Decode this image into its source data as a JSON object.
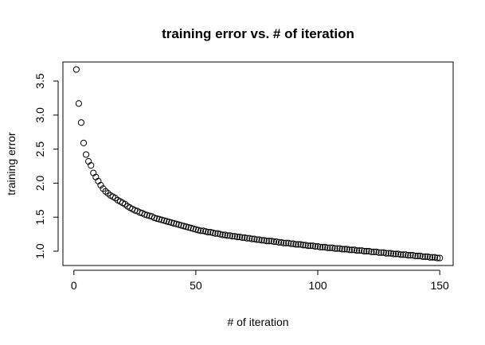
{
  "chart_data": {
    "type": "scatter",
    "title": "training error vs. # of iteration",
    "xlabel": "# of iteration",
    "ylabel": "training error",
    "xlim": [
      -4.5,
      155.5
    ],
    "ylim": [
      0.79,
      3.78
    ],
    "xticks": [
      0,
      50,
      100,
      150
    ],
    "yticks": [
      1.0,
      1.5,
      2.0,
      2.5,
      3.0,
      3.5
    ],
    "ytick_labels": [
      "1.0",
      "1.5",
      "2.0",
      "2.5",
      "3.0",
      "3.5"
    ],
    "grid": false,
    "legend": "none",
    "marker": "open-circle",
    "x": [
      1,
      2,
      3,
      4,
      5,
      6,
      7,
      8,
      9,
      10,
      11,
      12,
      13,
      14,
      15,
      16,
      17,
      18,
      19,
      20,
      21,
      22,
      23,
      24,
      25,
      26,
      27,
      28,
      29,
      30,
      31,
      32,
      33,
      34,
      35,
      36,
      37,
      38,
      39,
      40,
      41,
      42,
      43,
      44,
      45,
      46,
      47,
      48,
      49,
      50,
      51,
      52,
      53,
      54,
      55,
      56,
      57,
      58,
      59,
      60,
      61,
      62,
      63,
      64,
      65,
      66,
      67,
      68,
      69,
      70,
      71,
      72,
      73,
      74,
      75,
      76,
      77,
      78,
      79,
      80,
      81,
      82,
      83,
      84,
      85,
      86,
      87,
      88,
      89,
      90,
      91,
      92,
      93,
      94,
      95,
      96,
      97,
      98,
      99,
      100,
      101,
      102,
      103,
      104,
      105,
      106,
      107,
      108,
      109,
      110,
      111,
      112,
      113,
      114,
      115,
      116,
      117,
      118,
      119,
      120,
      121,
      122,
      123,
      124,
      125,
      126,
      127,
      128,
      129,
      130,
      131,
      132,
      133,
      134,
      135,
      136,
      137,
      138,
      139,
      140,
      141,
      142,
      143,
      144,
      145,
      146,
      147,
      148,
      149,
      150
    ],
    "y": [
      3.67,
      3.17,
      2.89,
      2.59,
      2.42,
      2.32,
      2.26,
      2.15,
      2.09,
      2.03,
      1.97,
      1.92,
      1.88,
      1.85,
      1.82,
      1.8,
      1.78,
      1.75,
      1.73,
      1.71,
      1.69,
      1.66,
      1.64,
      1.62,
      1.6,
      1.59,
      1.57,
      1.56,
      1.54,
      1.53,
      1.52,
      1.51,
      1.49,
      1.48,
      1.47,
      1.46,
      1.45,
      1.44,
      1.43,
      1.42,
      1.41,
      1.4,
      1.39,
      1.38,
      1.37,
      1.36,
      1.35,
      1.34,
      1.33,
      1.32,
      1.31,
      1.3,
      1.3,
      1.29,
      1.28,
      1.28,
      1.27,
      1.26,
      1.26,
      1.25,
      1.24,
      1.24,
      1.23,
      1.23,
      1.22,
      1.22,
      1.21,
      1.21,
      1.2,
      1.2,
      1.19,
      1.19,
      1.18,
      1.18,
      1.17,
      1.17,
      1.16,
      1.16,
      1.15,
      1.15,
      1.15,
      1.14,
      1.14,
      1.13,
      1.13,
      1.12,
      1.12,
      1.12,
      1.11,
      1.11,
      1.1,
      1.1,
      1.1,
      1.09,
      1.09,
      1.08,
      1.08,
      1.08,
      1.07,
      1.07,
      1.06,
      1.06,
      1.06,
      1.05,
      1.05,
      1.05,
      1.04,
      1.04,
      1.04,
      1.03,
      1.03,
      1.03,
      1.02,
      1.02,
      1.02,
      1.01,
      1.01,
      1.01,
      1.0,
      1.0,
      1.0,
      0.99,
      0.99,
      0.99,
      0.98,
      0.98,
      0.98,
      0.97,
      0.97,
      0.97,
      0.96,
      0.96,
      0.96,
      0.95,
      0.95,
      0.95,
      0.94,
      0.94,
      0.94,
      0.93,
      0.93,
      0.93,
      0.92,
      0.92,
      0.92,
      0.91,
      0.91,
      0.91,
      0.9,
      0.9
    ]
  }
}
